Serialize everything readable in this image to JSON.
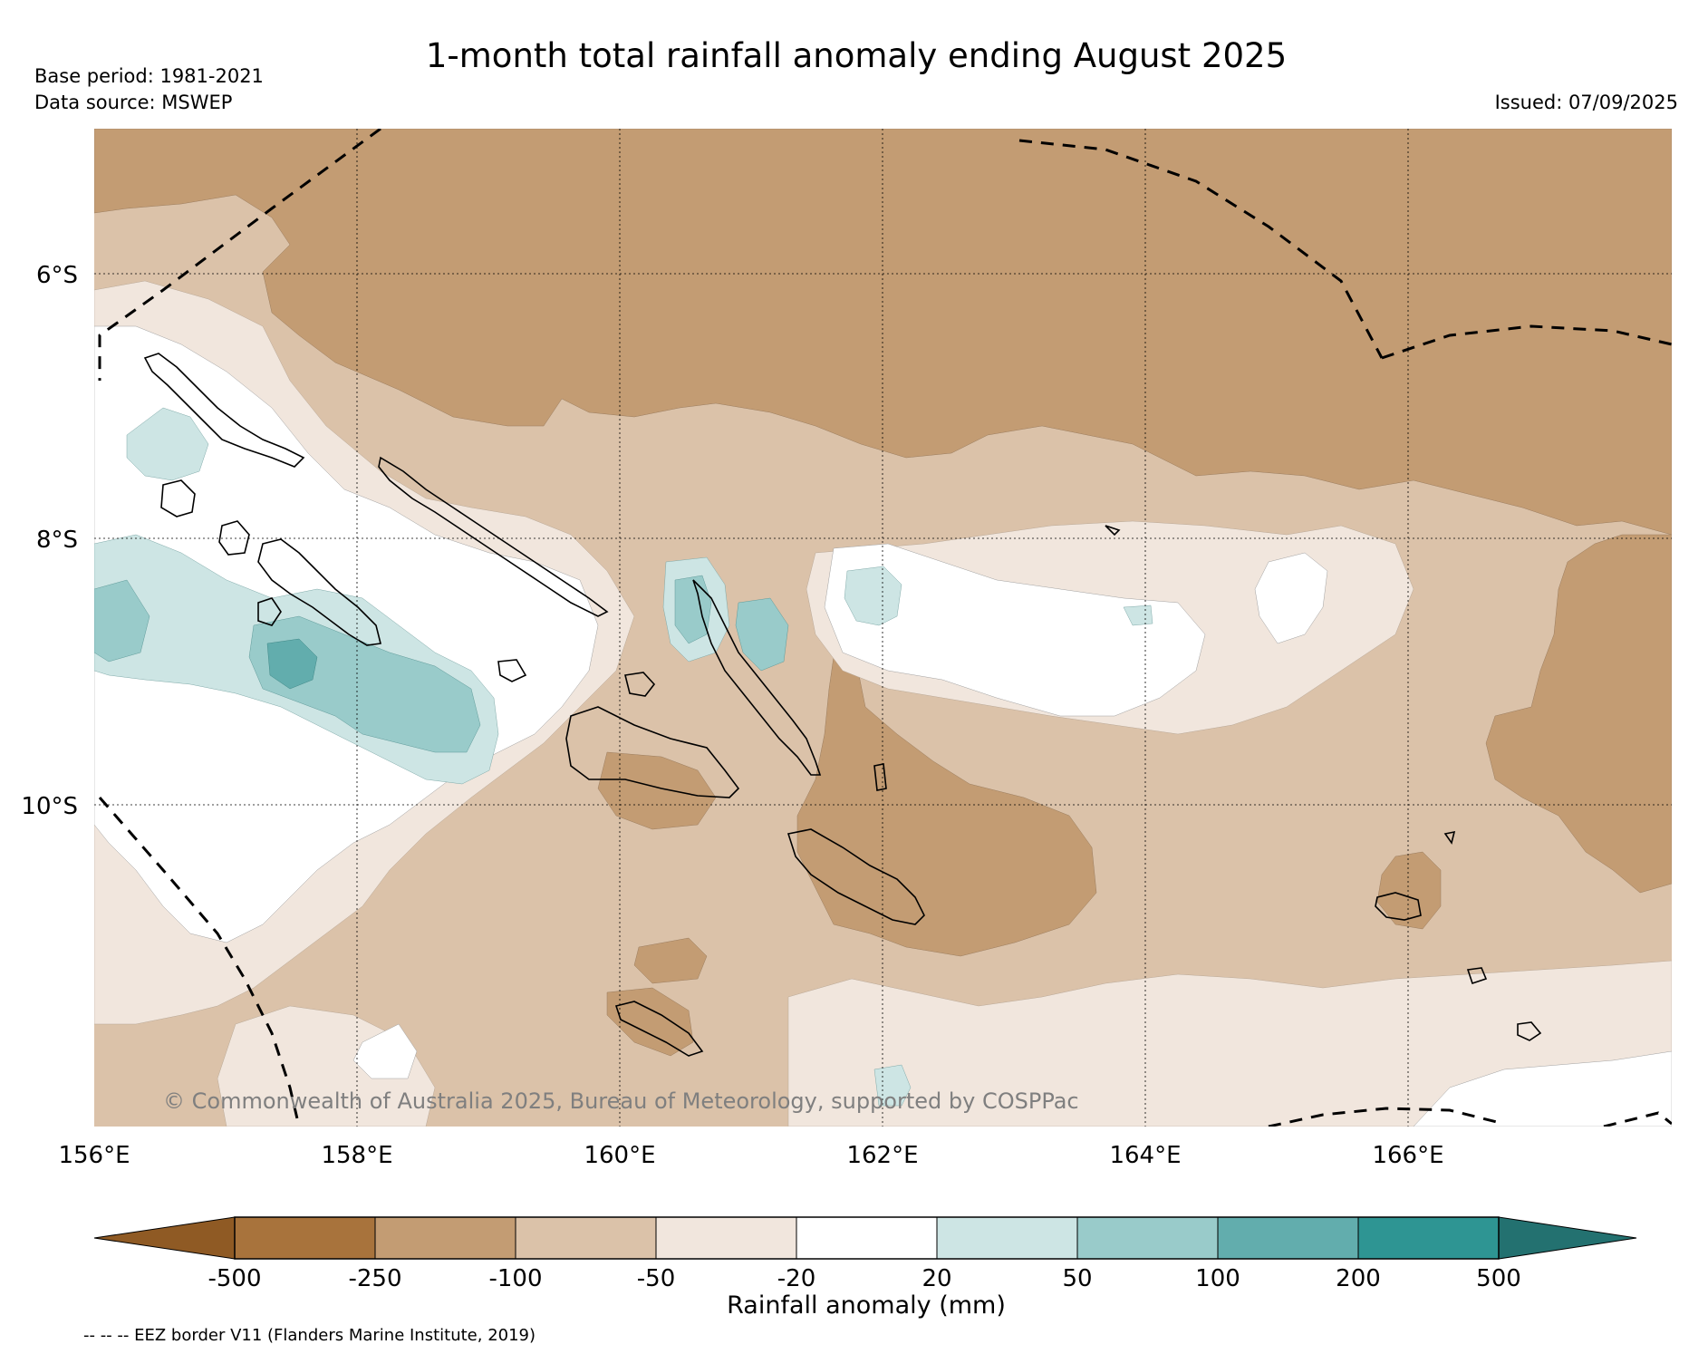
{
  "header": {
    "title": "1-month total rainfall anomaly ending August 2025",
    "base_period": "Base period: 1981-2021",
    "data_source": "Data source: MSWEP",
    "issued": "Issued: 07/09/2025"
  },
  "map": {
    "lat_labels": [
      "6°S",
      "8°S",
      "10°S"
    ],
    "lon_labels": [
      "156°E",
      "158°E",
      "160°E",
      "162°E",
      "164°E",
      "166°E"
    ],
    "copyright": "© Commonwealth of Australia 2025, Bureau of Meteorology, supported by COSPPac"
  },
  "colorbar": {
    "ticks": [
      "-500",
      "-250",
      "-100",
      "-50",
      "-20",
      "20",
      "50",
      "100",
      "200",
      "500"
    ],
    "label": "Rainfall anomaly (mm)",
    "colors": {
      "lt_-500": "#8f5a24",
      "-500_-250": "#a8733c",
      "-250_-100": "#c39c73",
      "-100_-50": "#dbc2a9",
      "-50_-20": "#f1e6dd",
      "-20_20": "#ffffff",
      "20_50": "#cde5e4",
      "50_100": "#99cbca",
      "100_200": "#62adad",
      "200_500": "#2e9593",
      "gt_500": "#237170"
    }
  },
  "footer": {
    "eez_note": "-- -- -- EEZ border V11 (Flanders Marine Institute, 2019)"
  }
}
